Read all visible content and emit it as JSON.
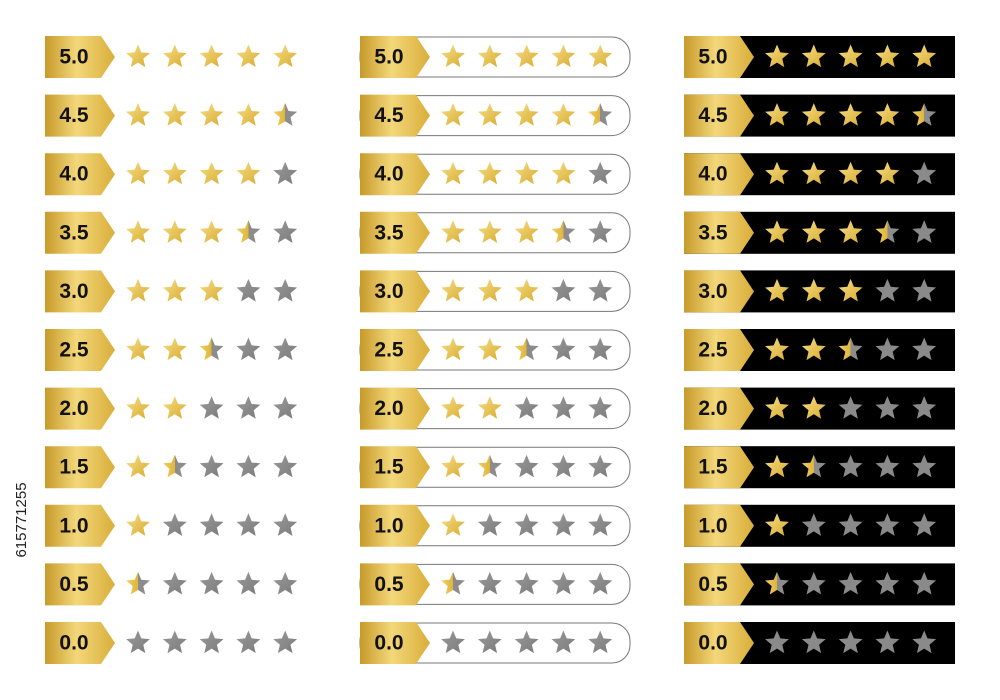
{
  "side_text": "615771255",
  "panels": [
    {
      "ratings": [
        "5.0",
        "4.5",
        "4.0",
        "3.5",
        "3.0",
        "2.5",
        "2.0",
        "1.5",
        "1.0",
        "0.5",
        "0.0"
      ]
    },
    {
      "ratings": [
        "5.0",
        "4.5",
        "4.0",
        "3.5",
        "3.0",
        "2.5",
        "2.0",
        "1.5",
        "1.0",
        "0.5",
        "0.0"
      ]
    },
    {
      "ratings": [
        "5.0",
        "4.5",
        "4.0",
        "3.5",
        "3.0",
        "2.5",
        "2.0",
        "1.5",
        "1.0",
        "0.5",
        "0.0"
      ]
    }
  ]
}
